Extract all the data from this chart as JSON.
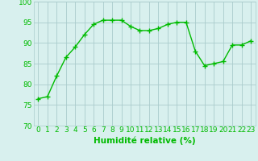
{
  "x": [
    0,
    1,
    2,
    3,
    4,
    5,
    6,
    7,
    8,
    9,
    10,
    11,
    12,
    13,
    14,
    15,
    16,
    17,
    18,
    19,
    20,
    21,
    22,
    23
  ],
  "y": [
    76.5,
    77,
    82,
    86.5,
    89,
    92,
    94.5,
    95.5,
    95.5,
    95.5,
    94,
    93,
    93,
    93.5,
    94.5,
    95,
    95,
    88,
    84.5,
    85,
    85.5,
    89.5,
    89.5,
    90.5
  ],
  "line_color": "#00bb00",
  "marker_color": "#00bb00",
  "bg_color": "#d8f0ee",
  "grid_color": "#aacccc",
  "xlabel": "Humidité relative (%)",
  "ylim": [
    70,
    100
  ],
  "xlim": [
    -0.5,
    23.5
  ],
  "yticks": [
    70,
    75,
    80,
    85,
    90,
    95,
    100
  ],
  "xticks": [
    0,
    1,
    2,
    3,
    4,
    5,
    6,
    7,
    8,
    9,
    10,
    11,
    12,
    13,
    14,
    15,
    16,
    17,
    18,
    19,
    20,
    21,
    22,
    23
  ],
  "xlabel_fontsize": 7.5,
  "tick_fontsize": 6.5,
  "line_width": 1.0,
  "marker_size": 2.5
}
